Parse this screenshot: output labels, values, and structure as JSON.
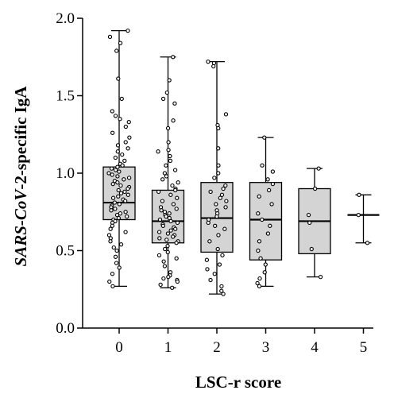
{
  "chart_data": {
    "type": "box",
    "title": "",
    "xlabel": "LSC-r score",
    "ylabel": {
      "italic_part": "SARS-CoV",
      "rest": "-2-specific IgA"
    },
    "ylim": [
      0.0,
      2.0
    ],
    "yticks": [
      "0.0",
      "0.5",
      "1.0",
      "1.5",
      "2.0"
    ],
    "ytick_values": [
      0.0,
      0.5,
      1.0,
      1.5,
      2.0
    ],
    "grid": false,
    "colors": {
      "box_fill": "#d4d4d4",
      "stroke": "#000000",
      "point_fill": "#ffffff"
    },
    "categories": [
      "0",
      "1",
      "2",
      "3",
      "4",
      "5"
    ],
    "boxes": [
      {
        "category": "0",
        "min": 0.27,
        "q1": 0.7,
        "median": 0.81,
        "q3": 1.04,
        "max": 1.92,
        "points": [
          1.92,
          1.88,
          1.84,
          1.79,
          1.61,
          1.48,
          1.4,
          1.37,
          1.35,
          1.33,
          1.3,
          1.26,
          1.23,
          1.2,
          1.18,
          1.16,
          1.14,
          1.12,
          1.1,
          1.08,
          1.06,
          1.05,
          1.04,
          1.03,
          1.02,
          1.01,
          1.0,
          0.99,
          0.98,
          0.97,
          0.96,
          0.95,
          0.94,
          0.93,
          0.92,
          0.91,
          0.9,
          0.89,
          0.88,
          0.87,
          0.86,
          0.85,
          0.84,
          0.83,
          0.82,
          0.81,
          0.8,
          0.79,
          0.78,
          0.77,
          0.76,
          0.75,
          0.74,
          0.73,
          0.72,
          0.71,
          0.7,
          0.69,
          0.68,
          0.66,
          0.64,
          0.62,
          0.6,
          0.58,
          0.56,
          0.54,
          0.52,
          0.5,
          0.46,
          0.42,
          0.39,
          0.35,
          0.3,
          0.27
        ]
      },
      {
        "category": "1",
        "min": 0.26,
        "q1": 0.55,
        "median": 0.69,
        "q3": 0.89,
        "max": 1.75,
        "points": [
          1.75,
          1.6,
          1.52,
          1.48,
          1.45,
          1.34,
          1.29,
          1.2,
          1.15,
          1.14,
          1.11,
          1.08,
          1.05,
          1.02,
          1.0,
          0.98,
          0.96,
          0.94,
          0.92,
          0.9,
          0.89,
          0.88,
          0.86,
          0.84,
          0.82,
          0.8,
          0.78,
          0.77,
          0.76,
          0.75,
          0.74,
          0.73,
          0.72,
          0.71,
          0.7,
          0.69,
          0.68,
          0.67,
          0.66,
          0.65,
          0.64,
          0.63,
          0.62,
          0.61,
          0.6,
          0.59,
          0.58,
          0.57,
          0.56,
          0.55,
          0.53,
          0.51,
          0.49,
          0.47,
          0.45,
          0.43,
          0.4,
          0.36,
          0.34,
          0.33,
          0.32,
          0.31,
          0.3,
          0.28,
          0.26
        ]
      },
      {
        "category": "2",
        "min": 0.22,
        "q1": 0.49,
        "median": 0.71,
        "q3": 0.94,
        "max": 1.72,
        "points": [
          1.72,
          1.71,
          1.69,
          1.38,
          1.31,
          1.29,
          1.16,
          1.05,
          1.0,
          0.97,
          0.92,
          0.9,
          0.88,
          0.86,
          0.84,
          0.82,
          0.8,
          0.78,
          0.76,
          0.74,
          0.72,
          0.7,
          0.68,
          0.66,
          0.64,
          0.6,
          0.56,
          0.51,
          0.47,
          0.44,
          0.41,
          0.38,
          0.35,
          0.31,
          0.27,
          0.24,
          0.22
        ]
      },
      {
        "category": "3",
        "min": 0.27,
        "q1": 0.44,
        "median": 0.7,
        "q3": 0.94,
        "max": 1.23,
        "points": [
          1.23,
          1.05,
          1.01,
          0.96,
          0.93,
          0.89,
          0.85,
          0.8,
          0.74,
          0.7,
          0.66,
          0.61,
          0.56,
          0.5,
          0.45,
          0.41,
          0.36,
          0.32,
          0.29,
          0.27
        ]
      },
      {
        "category": "4",
        "min": 0.33,
        "q1": 0.48,
        "median": 0.69,
        "q3": 0.9,
        "max": 1.03,
        "points": [
          1.03,
          0.9,
          0.73,
          0.68,
          0.51,
          0.33
        ]
      },
      {
        "category": "5",
        "min": 0.55,
        "q1": 0.73,
        "median": 0.73,
        "q3": 0.73,
        "max": 0.86,
        "points": [
          0.86,
          0.73,
          0.55
        ]
      }
    ]
  }
}
